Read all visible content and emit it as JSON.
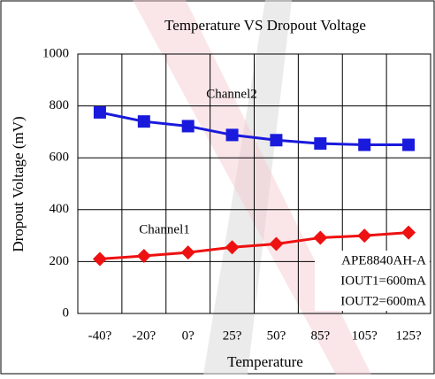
{
  "chart_data": {
    "type": "line",
    "title": "Temperature VS Dropout Voltage",
    "x_label": "Temperature",
    "y_label": "Dropout Voltage (mV)",
    "categories": [
      "-40?",
      "-20?",
      "0?",
      "25?",
      "50?",
      "85?",
      "105?",
      "125?"
    ],
    "series": [
      {
        "name": "Channel2",
        "color": "#1a1adc",
        "marker": "square",
        "values": [
          775,
          740,
          722,
          688,
          668,
          655,
          650,
          650
        ]
      },
      {
        "name": "Channel1",
        "color": "#ee1111",
        "marker": "diamond",
        "values": [
          210,
          222,
          235,
          255,
          268,
          292,
          300,
          312
        ]
      }
    ],
    "ylim": [
      0,
      1000
    ],
    "yticks": [
      0,
      200,
      400,
      600,
      800,
      1000
    ],
    "grid": true,
    "annotations": [
      "APE8840AH-A",
      "IOUT1=600mA",
      "IOUT2=600mA"
    ]
  }
}
